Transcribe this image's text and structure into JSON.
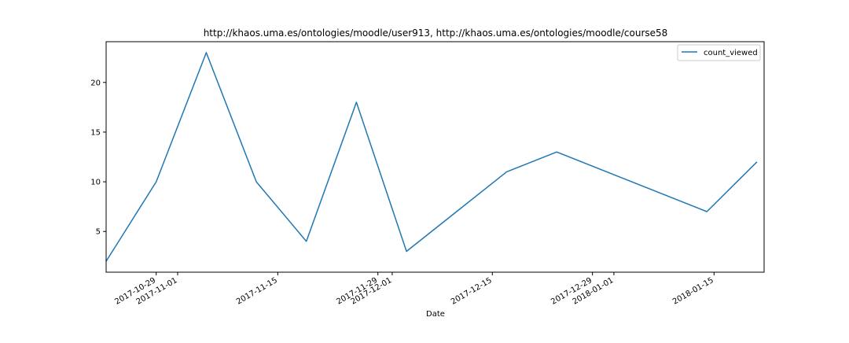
{
  "chart_data": {
    "type": "line",
    "title": "http://khaos.uma.es/ontologies/moodle/user913, http://khaos.uma.es/ontologies/moodle/course58",
    "xlabel": "Date",
    "ylabel": "",
    "x_range": [
      "2017-10-22",
      "2018-01-22"
    ],
    "ylim": [
      0.9,
      24.1
    ],
    "grid": false,
    "legend_position": "top-right",
    "x_ticks": [
      {
        "date": "2017-10-29",
        "label": "2017-10-29"
      },
      {
        "date": "2017-11-01",
        "label": "2017-11-01"
      },
      {
        "date": "2017-11-15",
        "label": "2017-11-15"
      },
      {
        "date": "2017-11-29",
        "label": "2017-11-29"
      },
      {
        "date": "2017-12-01",
        "label": "2017-12-01"
      },
      {
        "date": "2017-12-15",
        "label": "2017-12-15"
      },
      {
        "date": "2017-12-29",
        "label": "2017-12-29"
      },
      {
        "date": "2018-01-01",
        "label": "2018-01-01"
      },
      {
        "date": "2018-01-15",
        "label": "2018-01-15"
      }
    ],
    "y_ticks": [
      5,
      10,
      15,
      20
    ],
    "series": [
      {
        "name": "count_viewed",
        "color": "#1f77b4",
        "x": [
          "2017-10-22",
          "2017-10-29",
          "2017-11-05",
          "2017-11-12",
          "2017-11-19",
          "2017-11-26",
          "2017-12-03",
          "2017-12-10",
          "2017-12-17",
          "2017-12-24",
          "2017-12-31",
          "2018-01-07",
          "2018-01-14",
          "2018-01-21"
        ],
        "values": [
          2,
          10,
          23,
          10,
          4,
          18,
          3,
          7,
          11,
          13,
          11,
          9,
          7,
          12
        ]
      }
    ]
  }
}
